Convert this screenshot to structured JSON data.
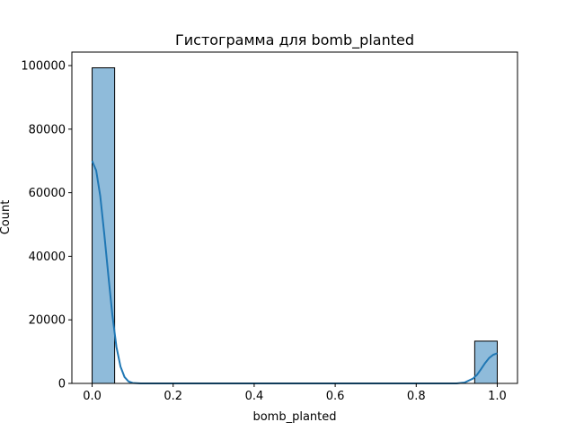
{
  "chart_data": {
    "type": "bar",
    "title": "Гистограмма для bomb_planted",
    "xlabel": "bomb_planted",
    "ylabel": "Count",
    "xlim": [
      -0.05,
      1.05
    ],
    "ylim": [
      0,
      104250
    ],
    "x_ticks": [
      0.0,
      0.2,
      0.4,
      0.6,
      0.8,
      1.0
    ],
    "x_tick_labels": [
      "0.0",
      "0.2",
      "0.4",
      "0.6",
      "0.8",
      "1.0"
    ],
    "y_ticks": [
      0,
      20000,
      40000,
      60000,
      80000,
      100000
    ],
    "y_tick_labels": [
      "0",
      "20000",
      "40000",
      "60000",
      "80000",
      "100000"
    ],
    "bins": [
      {
        "x0": 0.0,
        "x1": 0.0556,
        "count": 99300
      },
      {
        "x0": 0.9444,
        "x1": 1.0,
        "count": 13300
      }
    ],
    "kde": {
      "x": [
        0.0,
        0.01,
        0.02,
        0.03,
        0.04,
        0.05,
        0.06,
        0.07,
        0.08,
        0.09,
        0.1,
        0.12,
        0.15,
        0.2,
        0.3,
        0.5,
        0.7,
        0.85,
        0.9,
        0.92,
        0.94,
        0.95,
        0.96,
        0.97,
        0.98,
        0.99,
        1.0
      ],
      "y": [
        70000,
        67000,
        59000,
        47000,
        34000,
        21500,
        11500,
        5300,
        2000,
        600,
        150,
        0,
        0,
        0,
        0,
        0,
        0,
        0,
        0,
        300,
        1500,
        2700,
        4500,
        6400,
        8000,
        9000,
        9500
      ]
    },
    "colors": {
      "bar_fill": "#8fbbda",
      "bar_edge": "#000000",
      "kde_line": "#1f77b4"
    },
    "grid": false,
    "legend": "none"
  }
}
